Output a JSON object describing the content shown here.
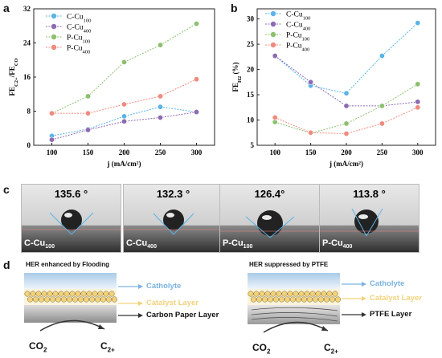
{
  "panels": {
    "a": "a",
    "b": "b",
    "c": "c",
    "d": "d"
  },
  "chart_data": [
    {
      "type": "line",
      "x": [
        100,
        150,
        200,
        250,
        300
      ],
      "xlabel": "j  (mA/cm²)",
      "ylabel": "FE_C2+/FE_CO",
      "ylim": [
        0,
        32
      ],
      "yticks": [
        0,
        8,
        16,
        24,
        32
      ],
      "series": [
        {
          "name": "C-Cu100",
          "base": "C-Cu",
          "sub": "100",
          "color": "#5bb3e6",
          "values": [
            2.2,
            3.8,
            6.8,
            9.0,
            7.8
          ]
        },
        {
          "name": "C-Cu400",
          "base": "C-Cu",
          "sub": "400",
          "color": "#8c6bb1",
          "values": [
            1.3,
            3.6,
            5.6,
            6.5,
            7.8
          ]
        },
        {
          "name": "P-Cu100",
          "base": "P-Cu",
          "sub": "100",
          "color": "#8cc06e",
          "values": [
            7.5,
            11.5,
            19.5,
            23.5,
            28.5
          ]
        },
        {
          "name": "P-Cu400",
          "base": "P-Cu",
          "sub": "400",
          "color": "#ef8a7e",
          "values": [
            7.5,
            7.5,
            9.6,
            11.5,
            15.5
          ]
        }
      ]
    },
    {
      "type": "line",
      "x": [
        100,
        150,
        200,
        250,
        300
      ],
      "xlabel": "j (mA/cm²)",
      "ylabel": "FE_H2 (%)",
      "ylim": [
        5,
        32
      ],
      "yticks": [
        5,
        10,
        15,
        20,
        25,
        30
      ],
      "series": [
        {
          "name": "C-Cu100",
          "base": "C-Cu",
          "sub": "100",
          "color": "#5bb3e6",
          "values": [
            22.7,
            16.8,
            15.3,
            22.7,
            29.2
          ]
        },
        {
          "name": "C-Cu400",
          "base": "C-Cu",
          "sub": "400",
          "color": "#8c6bb1",
          "values": [
            22.7,
            17.5,
            12.8,
            12.8,
            13.6
          ]
        },
        {
          "name": "P-Cu100",
          "base": "P-Cu",
          "sub": "100",
          "color": "#8cc06e",
          "values": [
            9.6,
            7.4,
            9.3,
            12.8,
            17.1
          ]
        },
        {
          "name": "P-Cu400",
          "base": "P-Cu",
          "sub": "400",
          "color": "#ef8a7e",
          "values": [
            10.5,
            7.5,
            7.3,
            9.3,
            12.5
          ]
        }
      ]
    }
  ],
  "contact_angles": [
    {
      "angle": "135.6 °",
      "base": "C-Cu",
      "sub": "100"
    },
    {
      "angle": "132.3 °",
      "base": "C-Cu",
      "sub": "400"
    },
    {
      "angle": "126.4°",
      "base": "P-Cu",
      "sub": "100"
    },
    {
      "angle": "113.8 °",
      "base": "P-Cu",
      "sub": "400"
    }
  ],
  "scheme": {
    "left_title": "HER enhanced by Flooding",
    "right_title": "HER suppressed by PTFE",
    "catholyte": "Catholyte",
    "catalyst": "Catalyst Layer",
    "carbon_paper": "Carbon Paper Layer",
    "ptfe": "PTFE Layer",
    "co2": "CO",
    "co2_sub": "2",
    "c2": "C",
    "c2_sub": "2+",
    "colors": {
      "catholyte": "#7ab3e0",
      "catalyst": "#f2d27a"
    }
  }
}
